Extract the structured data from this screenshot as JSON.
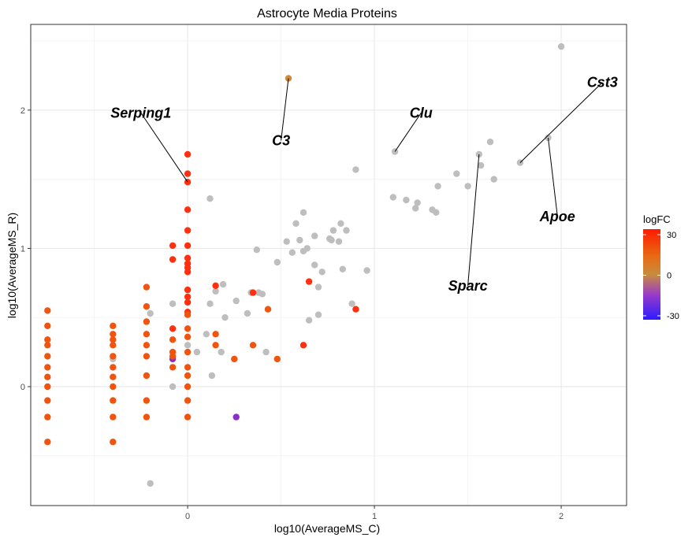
{
  "chart_data": {
    "type": "scatter",
    "title": "Astrocyte Media Proteins",
    "xlabel": "log10(AverageMS_C)",
    "ylabel": "log10(AverageMS_R)",
    "xlim": [
      -0.84,
      2.35
    ],
    "ylim": [
      -0.86,
      2.62
    ],
    "x_ticks": [
      0,
      1,
      2
    ],
    "y_ticks": [
      0,
      1,
      2
    ],
    "grid": true,
    "color_scale": {
      "title": "logFC",
      "min": -30,
      "max": 30,
      "ticks": [
        30,
        0,
        -30
      ],
      "colors": {
        "low": "#2b1bff",
        "mid": "#c88c3c",
        "high": "#ff1a00"
      }
    },
    "na_color": "#bebebe",
    "groups": [
      {
        "color": "#bebebe",
        "points": [
          [
            2.0,
            2.46
          ],
          [
            1.93,
            1.8
          ],
          [
            1.78,
            1.62
          ],
          [
            1.62,
            1.77
          ],
          [
            1.64,
            1.5
          ],
          [
            1.56,
            1.68
          ],
          [
            1.57,
            1.6
          ],
          [
            1.5,
            1.45
          ],
          [
            1.44,
            1.54
          ],
          [
            1.34,
            1.45
          ],
          [
            1.31,
            1.28
          ],
          [
            1.33,
            1.26
          ],
          [
            1.23,
            1.33
          ],
          [
            1.17,
            1.35
          ],
          [
            1.22,
            1.29
          ],
          [
            1.1,
            1.37
          ],
          [
            1.11,
            1.7
          ],
          [
            0.9,
            1.57
          ],
          [
            0.96,
            0.84
          ],
          [
            0.85,
            1.13
          ],
          [
            0.82,
            1.18
          ],
          [
            0.83,
            0.85
          ],
          [
            0.77,
            1.06
          ],
          [
            0.78,
            1.13
          ],
          [
            0.76,
            1.07
          ],
          [
            0.81,
            1.05
          ],
          [
            0.68,
            1.09
          ],
          [
            0.62,
            1.26
          ],
          [
            0.58,
            1.18
          ],
          [
            0.6,
            1.06
          ],
          [
            0.53,
            1.05
          ],
          [
            0.56,
            0.97
          ],
          [
            0.62,
            0.98
          ],
          [
            0.64,
            1.0
          ],
          [
            0.68,
            0.88
          ],
          [
            0.72,
            0.83
          ],
          [
            0.7,
            0.72
          ],
          [
            0.48,
            0.9
          ],
          [
            0.37,
            0.99
          ],
          [
            0.34,
            0.68
          ],
          [
            0.38,
            0.68
          ],
          [
            0.32,
            0.53
          ],
          [
            0.26,
            0.62
          ],
          [
            0.19,
            0.74
          ],
          [
            0.12,
            0.6
          ],
          [
            0.15,
            0.69
          ],
          [
            0.12,
            1.36
          ],
          [
            0.2,
            0.5
          ],
          [
            0.18,
            0.25
          ],
          [
            0.1,
            0.38
          ],
          [
            0.05,
            0.25
          ],
          [
            0.13,
            0.08
          ],
          [
            0.4,
            0.67
          ],
          [
            0.42,
            0.25
          ],
          [
            0.65,
            0.48
          ],
          [
            0.7,
            0.52
          ],
          [
            0.88,
            0.6
          ],
          [
            -0.08,
            0.6
          ],
          [
            -0.08,
            0.0
          ],
          [
            0.0,
            0.3
          ],
          [
            -0.2,
            0.53
          ],
          [
            -0.4,
            0.2
          ],
          [
            -0.2,
            -0.7
          ]
        ]
      },
      {
        "color": "#cf8a3a",
        "points": [
          [
            0.54,
            2.23
          ]
        ]
      },
      {
        "color": "#8a2fc8",
        "points": [
          [
            -0.08,
            0.2
          ],
          [
            0.26,
            -0.22
          ]
        ]
      },
      {
        "color": "#ff3010",
        "points": [
          [
            0.0,
            1.68
          ],
          [
            0.0,
            1.54
          ],
          [
            0.0,
            1.48
          ],
          [
            0.0,
            1.28
          ],
          [
            0.0,
            1.13
          ],
          [
            0.0,
            1.02
          ],
          [
            0.0,
            0.93
          ],
          [
            0.0,
            0.89
          ],
          [
            0.0,
            0.86
          ],
          [
            0.0,
            0.83
          ],
          [
            0.0,
            0.7
          ],
          [
            0.0,
            0.65
          ],
          [
            0.0,
            0.61
          ],
          [
            0.0,
            0.54
          ],
          [
            -0.08,
            0.92
          ],
          [
            -0.08,
            1.02
          ],
          [
            -0.08,
            0.42
          ],
          [
            0.15,
            0.73
          ],
          [
            0.35,
            0.68
          ],
          [
            0.65,
            0.76
          ],
          [
            0.62,
            0.3
          ],
          [
            0.9,
            0.56
          ]
        ]
      },
      {
        "color": "#f05510",
        "points": [
          [
            -0.75,
            0.55
          ],
          [
            -0.75,
            0.44
          ],
          [
            -0.75,
            0.34
          ],
          [
            -0.75,
            0.3
          ],
          [
            -0.75,
            0.22
          ],
          [
            -0.75,
            0.14
          ],
          [
            -0.75,
            0.07
          ],
          [
            -0.75,
            0.0
          ],
          [
            -0.75,
            -0.1
          ],
          [
            -0.75,
            -0.22
          ],
          [
            -0.75,
            -0.4
          ],
          [
            -0.4,
            0.44
          ],
          [
            -0.4,
            0.38
          ],
          [
            -0.4,
            0.34
          ],
          [
            -0.4,
            0.3
          ],
          [
            -0.4,
            0.22
          ],
          [
            -0.4,
            0.14
          ],
          [
            -0.4,
            0.07
          ],
          [
            -0.4,
            0.0
          ],
          [
            -0.4,
            -0.1
          ],
          [
            -0.4,
            -0.22
          ],
          [
            -0.4,
            -0.4
          ],
          [
            -0.22,
            0.72
          ],
          [
            -0.22,
            0.58
          ],
          [
            -0.22,
            0.47
          ],
          [
            -0.22,
            0.38
          ],
          [
            -0.22,
            0.3
          ],
          [
            -0.22,
            0.22
          ],
          [
            -0.22,
            0.08
          ],
          [
            -0.22,
            -0.1
          ],
          [
            -0.22,
            -0.22
          ],
          [
            -0.08,
            0.34
          ],
          [
            -0.08,
            0.25
          ],
          [
            -0.08,
            0.14
          ],
          [
            -0.08,
            0.22
          ],
          [
            0.0,
            0.52
          ],
          [
            0.0,
            0.42
          ],
          [
            0.0,
            0.36
          ],
          [
            0.0,
            0.25
          ],
          [
            0.0,
            0.14
          ],
          [
            0.0,
            0.08
          ],
          [
            0.0,
            0.0
          ],
          [
            0.0,
            -0.1
          ],
          [
            0.0,
            -0.22
          ],
          [
            0.15,
            0.38
          ],
          [
            0.15,
            0.3
          ],
          [
            0.25,
            0.2
          ],
          [
            0.35,
            0.3
          ],
          [
            0.43,
            0.56
          ],
          [
            0.48,
            0.2
          ]
        ]
      }
    ],
    "annotations": [
      {
        "text": "Serping1",
        "label_at": [
          -0.25,
          1.98
        ],
        "point": [
          0.0,
          1.48
        ]
      },
      {
        "text": "C3",
        "label_at": [
          0.5,
          1.78
        ],
        "point": [
          0.54,
          2.23
        ]
      },
      {
        "text": "Clu",
        "label_at": [
          1.25,
          1.98
        ],
        "point": [
          1.11,
          1.7
        ]
      },
      {
        "text": "Cst3",
        "label_at": [
          2.22,
          2.2
        ],
        "point": [
          1.78,
          1.62
        ]
      },
      {
        "text": "Apoe",
        "label_at": [
          1.98,
          1.23
        ],
        "point": [
          1.93,
          1.8
        ]
      },
      {
        "text": "Sparc",
        "label_at": [
          1.5,
          0.73
        ],
        "point": [
          1.56,
          1.68
        ]
      }
    ]
  }
}
